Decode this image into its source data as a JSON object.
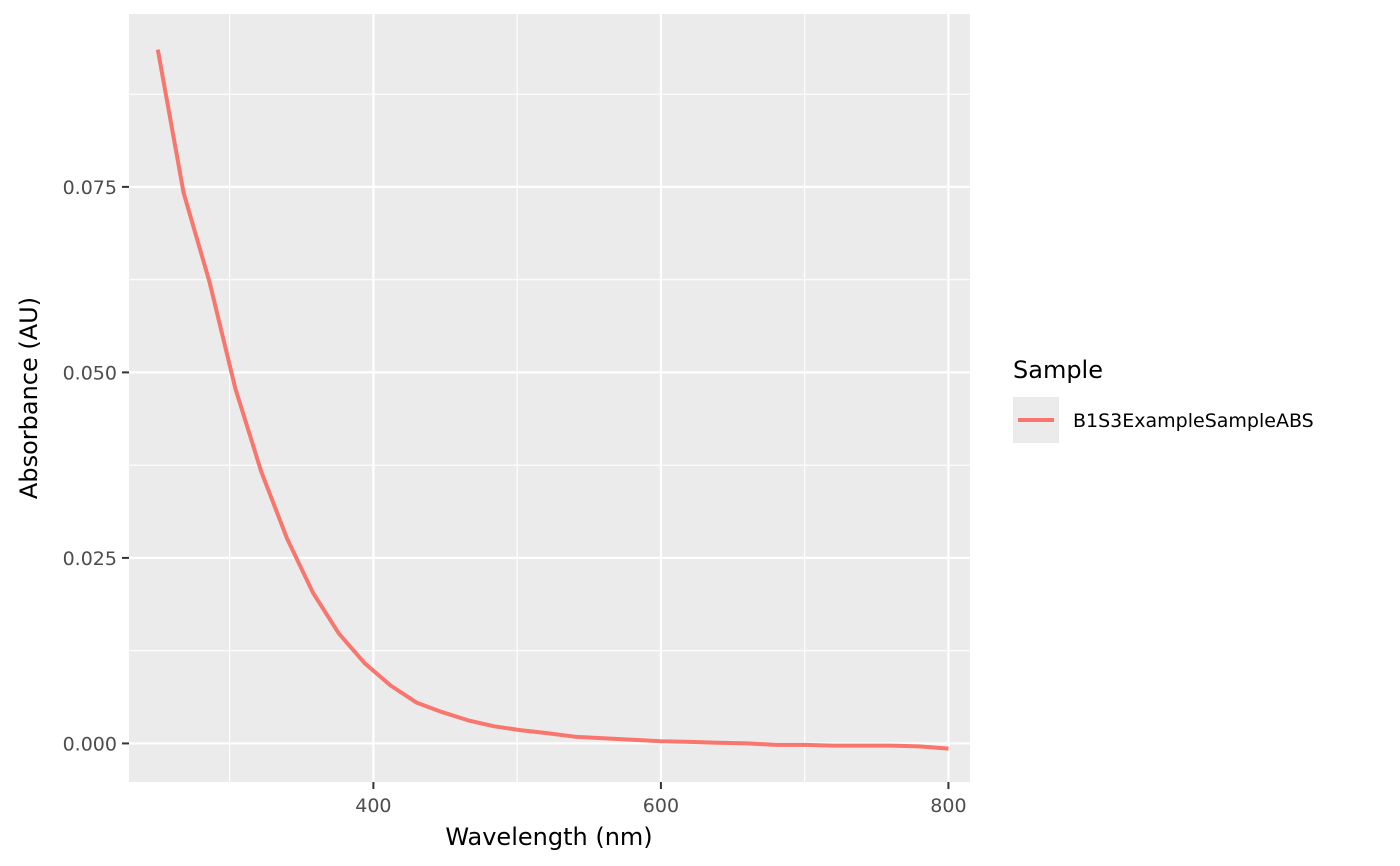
{
  "chart_data": {
    "type": "line",
    "title": "",
    "xlabel": "Wavelength (nm)",
    "ylabel": "Absorbance (AU)",
    "xlim": [
      230,
      815
    ],
    "ylim": [
      -0.0052,
      0.0983
    ],
    "x_ticks": [
      {
        "value": 400,
        "label": "400"
      },
      {
        "value": 600,
        "label": "600"
      },
      {
        "value": 800,
        "label": "800"
      }
    ],
    "x_minor_ticks": [
      300,
      500,
      700
    ],
    "y_ticks": [
      {
        "value": 0.0,
        "label": "0.000"
      },
      {
        "value": 0.025,
        "label": "0.025"
      },
      {
        "value": 0.05,
        "label": "0.050"
      },
      {
        "value": 0.075,
        "label": "0.075"
      }
    ],
    "y_minor_ticks": [
      0.0125,
      0.0375,
      0.0625,
      0.0875
    ],
    "grid": true,
    "legend": {
      "title": "Sample",
      "position": "right"
    },
    "series": [
      {
        "name": "B1S3ExampleSampleABS",
        "color": "#F8766D",
        "x": [
          250,
          268,
          286,
          304,
          322,
          340,
          358,
          376,
          394,
          412,
          430,
          448,
          466,
          484,
          502,
          520,
          540,
          560,
          580,
          600,
          620,
          640,
          660,
          680,
          700,
          720,
          740,
          760,
          780,
          800
        ],
        "y": [
          0.0935,
          0.0742,
          0.0622,
          0.0478,
          0.0366,
          0.0276,
          0.0203,
          0.0148,
          0.0108,
          0.0078,
          0.0055,
          0.0042,
          0.0031,
          0.0023,
          0.0018,
          0.0014,
          0.0009,
          0.0007,
          0.0005,
          0.0003,
          0.0002,
          0.0001,
          0.0,
          -0.0002,
          -0.0002,
          -0.0003,
          -0.0003,
          -0.0003,
          -0.0004,
          -0.0007
        ]
      }
    ]
  }
}
